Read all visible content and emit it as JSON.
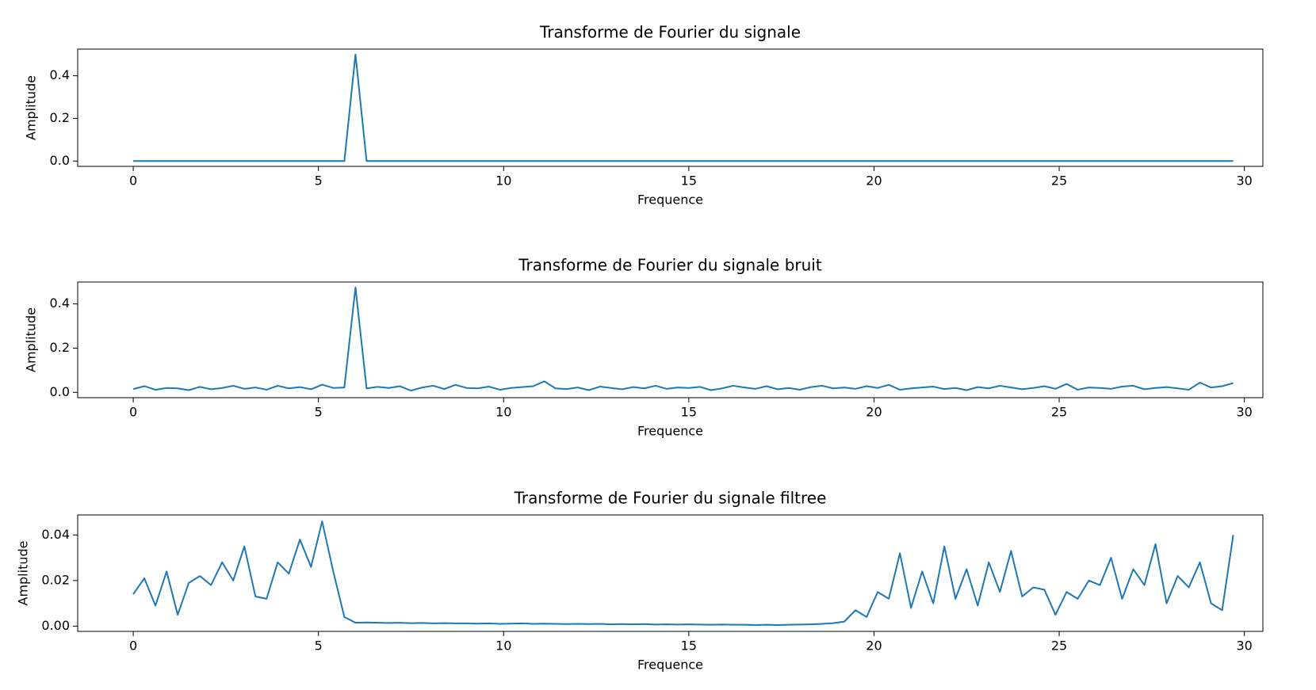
{
  "chart_data": [
    {
      "type": "line",
      "title": "Transforme de Fourier du signale",
      "xlabel": "Frequence",
      "ylabel": "Amplitude",
      "color": "#1f77b4",
      "x": [
        0,
        0.3,
        0.6,
        0.9,
        1.2,
        1.5,
        1.8,
        2.1,
        2.4,
        2.7,
        3,
        3.3,
        3.6,
        3.9,
        4.2,
        4.5,
        4.8,
        5.1,
        5.4,
        5.7,
        6,
        6.3,
        6.6,
        6.9,
        7.2,
        7.5,
        7.8,
        8.1,
        8.4,
        8.7,
        9,
        9.3,
        9.6,
        9.9,
        10.2,
        10.5,
        10.8,
        11.1,
        11.4,
        11.7,
        12,
        12.3,
        12.6,
        12.9,
        13.2,
        13.5,
        13.8,
        14.1,
        14.4,
        14.7,
        15,
        15.3,
        15.6,
        15.9,
        16.2,
        16.5,
        16.8,
        17.1,
        17.4,
        17.7,
        18,
        18.3,
        18.6,
        18.9,
        19.2,
        19.5,
        19.8,
        20.1,
        20.4,
        20.7,
        21,
        21.3,
        21.6,
        21.9,
        22.2,
        22.5,
        22.8,
        23.1,
        23.4,
        23.7,
        24,
        24.3,
        24.6,
        24.9,
        25.2,
        25.5,
        25.8,
        26.1,
        26.4,
        26.7,
        27,
        27.3,
        27.6,
        27.9,
        28.2,
        28.5,
        28.8,
        29.1,
        29.4,
        29.7
      ],
      "values": [
        0,
        0,
        0,
        0,
        0,
        0,
        0,
        0,
        0,
        0,
        0,
        0,
        0,
        0,
        0,
        0,
        0,
        0,
        0,
        0,
        0.5,
        0,
        0,
        0,
        0,
        0,
        0,
        0,
        0,
        0,
        0,
        0,
        0,
        0,
        0,
        0,
        0,
        0,
        0,
        0,
        0,
        0,
        0,
        0,
        0,
        0,
        0,
        0,
        0,
        0,
        0,
        0,
        0,
        0,
        0,
        0,
        0,
        0,
        0,
        0,
        0,
        0,
        0,
        0,
        0,
        0,
        0,
        0,
        0,
        0,
        0,
        0,
        0,
        0,
        0,
        0,
        0,
        0,
        0,
        0,
        0,
        0,
        0,
        0,
        0,
        0,
        0,
        0,
        0,
        0,
        0,
        0,
        0,
        0,
        0,
        0,
        0,
        0,
        0,
        0
      ],
      "xlim": [
        -1.5,
        30.5
      ],
      "xticks": [
        0,
        5,
        10,
        15,
        20,
        25,
        30
      ],
      "ylim": [
        -0.025,
        0.525
      ],
      "yticks": [
        {
          "value": 0,
          "label": "0.0"
        },
        0.2,
        0.4
      ]
    },
    {
      "type": "line",
      "title": "Transforme de Fourier du signale bruit",
      "xlabel": "Frequence",
      "ylabel": "Amplitude",
      "color": "#1f77b4",
      "x": [
        0,
        0.3,
        0.6,
        0.9,
        1.2,
        1.5,
        1.8,
        2.1,
        2.4,
        2.7,
        3,
        3.3,
        3.6,
        3.9,
        4.2,
        4.5,
        4.8,
        5.1,
        5.4,
        5.7,
        6,
        6.3,
        6.6,
        6.9,
        7.2,
        7.5,
        7.8,
        8.1,
        8.4,
        8.7,
        9,
        9.3,
        9.6,
        9.9,
        10.2,
        10.5,
        10.8,
        11.1,
        11.4,
        11.7,
        12,
        12.3,
        12.6,
        12.9,
        13.2,
        13.5,
        13.8,
        14.1,
        14.4,
        14.7,
        15,
        15.3,
        15.6,
        15.9,
        16.2,
        16.5,
        16.8,
        17.1,
        17.4,
        17.7,
        18,
        18.3,
        18.6,
        18.9,
        19.2,
        19.5,
        19.8,
        20.1,
        20.4,
        20.7,
        21,
        21.3,
        21.6,
        21.9,
        22.2,
        22.5,
        22.8,
        23.1,
        23.4,
        23.7,
        24,
        24.3,
        24.6,
        24.9,
        25.2,
        25.5,
        25.8,
        26.1,
        26.4,
        26.7,
        27,
        27.3,
        27.6,
        27.9,
        28.2,
        28.5,
        28.8,
        29.1,
        29.4,
        29.7
      ],
      "values": [
        0.015,
        0.028,
        0.012,
        0.02,
        0.018,
        0.01,
        0.025,
        0.014,
        0.02,
        0.03,
        0.016,
        0.022,
        0.012,
        0.03,
        0.018,
        0.024,
        0.014,
        0.035,
        0.02,
        0.022,
        0.475,
        0.018,
        0.025,
        0.02,
        0.028,
        0.008,
        0.022,
        0.03,
        0.015,
        0.034,
        0.02,
        0.018,
        0.026,
        0.012,
        0.02,
        0.024,
        0.028,
        0.05,
        0.018,
        0.015,
        0.022,
        0.01,
        0.026,
        0.02,
        0.014,
        0.024,
        0.018,
        0.03,
        0.016,
        0.022,
        0.02,
        0.025,
        0.01,
        0.018,
        0.03,
        0.022,
        0.016,
        0.028,
        0.014,
        0.02,
        0.012,
        0.024,
        0.03,
        0.018,
        0.022,
        0.016,
        0.028,
        0.02,
        0.034,
        0.012,
        0.018,
        0.022,
        0.026,
        0.015,
        0.02,
        0.01,
        0.024,
        0.018,
        0.03,
        0.022,
        0.014,
        0.02,
        0.028,
        0.016,
        0.038,
        0.012,
        0.022,
        0.02,
        0.016,
        0.026,
        0.03,
        0.014,
        0.02,
        0.024,
        0.018,
        0.012,
        0.044,
        0.022,
        0.028,
        0.042
      ],
      "xlim": [
        -1.5,
        30.5
      ],
      "xticks": [
        0,
        5,
        10,
        15,
        20,
        25,
        30
      ],
      "ylim": [
        -0.024,
        0.499
      ],
      "yticks": [
        {
          "value": 0,
          "label": "0.0"
        },
        0.2,
        0.4
      ]
    },
    {
      "type": "line",
      "title": "Transforme de Fourier du signale filtree",
      "xlabel": "Frequence",
      "ylabel": "Amplitude",
      "color": "#1f77b4",
      "x": [
        0,
        0.3,
        0.6,
        0.9,
        1.2,
        1.5,
        1.8,
        2.1,
        2.4,
        2.7,
        3,
        3.3,
        3.6,
        3.9,
        4.2,
        4.5,
        4.8,
        5.1,
        5.4,
        5.7,
        6,
        6.3,
        6.6,
        6.9,
        7.2,
        7.5,
        7.8,
        8.1,
        8.4,
        8.7,
        9,
        9.3,
        9.6,
        9.9,
        10.2,
        10.5,
        10.8,
        11.1,
        11.4,
        11.7,
        12,
        12.3,
        12.6,
        12.9,
        13.2,
        13.5,
        13.8,
        14.1,
        14.4,
        14.7,
        15,
        15.3,
        15.6,
        15.9,
        16.2,
        16.5,
        16.8,
        17.1,
        17.4,
        17.7,
        18,
        18.3,
        18.6,
        18.9,
        19.2,
        19.5,
        19.8,
        20.1,
        20.4,
        20.7,
        21,
        21.3,
        21.6,
        21.9,
        22.2,
        22.5,
        22.8,
        23.1,
        23.4,
        23.7,
        24,
        24.3,
        24.6,
        24.9,
        25.2,
        25.5,
        25.8,
        26.1,
        26.4,
        26.7,
        27,
        27.3,
        27.6,
        27.9,
        28.2,
        28.5,
        28.8,
        29.1,
        29.4,
        29.7
      ],
      "values": [
        0.014,
        0.021,
        0.009,
        0.024,
        0.005,
        0.019,
        0.022,
        0.018,
        0.028,
        0.02,
        0.035,
        0.013,
        0.012,
        0.028,
        0.023,
        0.038,
        0.026,
        0.046,
        0.024,
        0.004,
        0.0015,
        0.0016,
        0.0015,
        0.0014,
        0.0015,
        0.0013,
        0.0014,
        0.0012,
        0.0013,
        0.0012,
        0.0012,
        0.0011,
        0.0012,
        0.001,
        0.0011,
        0.0012,
        0.001,
        0.0011,
        0.001,
        0.0009,
        0.001,
        0.0009,
        0.001,
        0.0008,
        0.0009,
        0.0008,
        0.0009,
        0.0007,
        0.0008,
        0.0007,
        0.0008,
        0.0007,
        0.0006,
        0.0007,
        0.0006,
        0.0006,
        0.0005,
        0.0006,
        0.0005,
        0.0006,
        0.0007,
        0.0008,
        0.001,
        0.0013,
        0.002,
        0.007,
        0.004,
        0.015,
        0.012,
        0.032,
        0.008,
        0.024,
        0.01,
        0.035,
        0.012,
        0.025,
        0.009,
        0.028,
        0.015,
        0.033,
        0.013,
        0.017,
        0.016,
        0.005,
        0.015,
        0.012,
        0.02,
        0.018,
        0.03,
        0.012,
        0.025,
        0.018,
        0.036,
        0.01,
        0.022,
        0.017,
        0.028,
        0.01,
        0.007,
        0.04
      ],
      "xlim": [
        -1.5,
        30.5
      ],
      "xticks": [
        0,
        5,
        10,
        15,
        20,
        25,
        30
      ],
      "ylim": [
        -0.0023,
        0.0488
      ],
      "yticks": [
        {
          "value": 0,
          "label": "0.00"
        },
        0.02,
        0.04
      ]
    }
  ]
}
